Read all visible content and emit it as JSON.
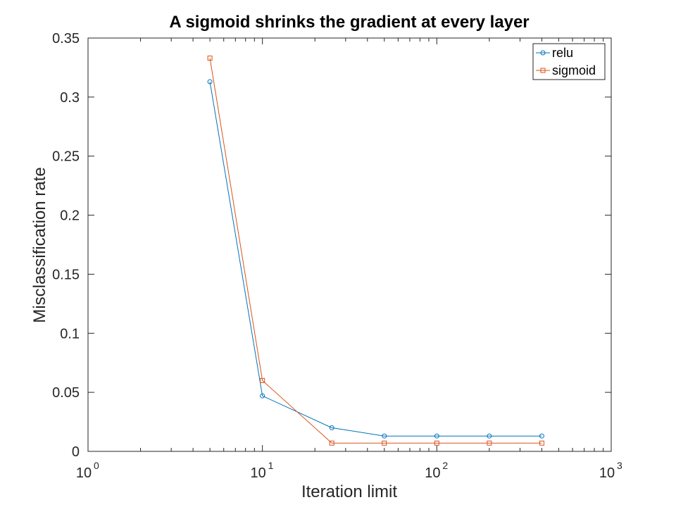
{
  "chart_data": {
    "type": "line",
    "title": "A sigmoid shrinks the gradient at every layer",
    "xlabel": "Iteration limit",
    "ylabel": "Misclassification rate",
    "xscale": "log",
    "xlim": [
      1,
      1000
    ],
    "ylim": [
      0,
      0.35
    ],
    "x_ticks": [
      {
        "base": "10",
        "exp": "0",
        "value": 1
      },
      {
        "base": "10",
        "exp": "1",
        "value": 10
      },
      {
        "base": "10",
        "exp": "2",
        "value": 100
      },
      {
        "base": "10",
        "exp": "3",
        "value": 1000
      }
    ],
    "y_ticks": [
      {
        "label": "0",
        "value": 0
      },
      {
        "label": "0.05",
        "value": 0.05
      },
      {
        "label": "0.1",
        "value": 0.1
      },
      {
        "label": "0.15",
        "value": 0.15
      },
      {
        "label": "0.2",
        "value": 0.2
      },
      {
        "label": "0.25",
        "value": 0.25
      },
      {
        "label": "0.3",
        "value": 0.3
      },
      {
        "label": "0.35",
        "value": 0.35
      }
    ],
    "grid": false,
    "legend_position": "top-right",
    "series": [
      {
        "name": "relu",
        "color": "#0072BD",
        "marker": "circle",
        "x": [
          5,
          10,
          25,
          50,
          100,
          200,
          400
        ],
        "y": [
          0.313,
          0.047,
          0.02,
          0.013,
          0.013,
          0.013,
          0.013
        ]
      },
      {
        "name": "sigmoid",
        "color": "#D95319",
        "marker": "square",
        "x": [
          5,
          10,
          25,
          50,
          100,
          200,
          400
        ],
        "y": [
          0.333,
          0.06,
          0.007,
          0.007,
          0.007,
          0.007,
          0.007
        ]
      }
    ]
  }
}
